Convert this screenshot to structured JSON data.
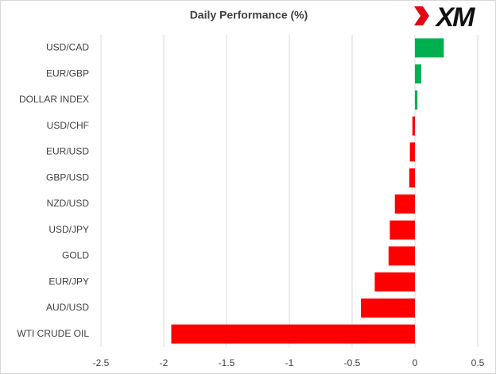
{
  "chart_data": {
    "type": "barh",
    "title": "Daily Performance (%)",
    "logo": "XM",
    "categories": [
      "USD/CAD",
      "EUR/GBP",
      "DOLLAR INDEX",
      "USD/CHF",
      "EUR/USD",
      "GBP/USD",
      "NZD/USD",
      "USD/JPY",
      "GOLD",
      "EUR/JPY",
      "AUD/USD",
      "WTI CRUDE OIL"
    ],
    "values": [
      0.23,
      0.05,
      0.02,
      -0.02,
      -0.04,
      -0.045,
      -0.16,
      -0.2,
      -0.21,
      -0.32,
      -0.43,
      -1.94
    ],
    "positive_color": "#00b050",
    "negative_color": "#ff0000",
    "xlim": [
      -2.5,
      0.5
    ],
    "xticks": [
      -2.5,
      -2,
      -1.5,
      -1,
      -0.5,
      0,
      0.5
    ],
    "grid": true
  }
}
